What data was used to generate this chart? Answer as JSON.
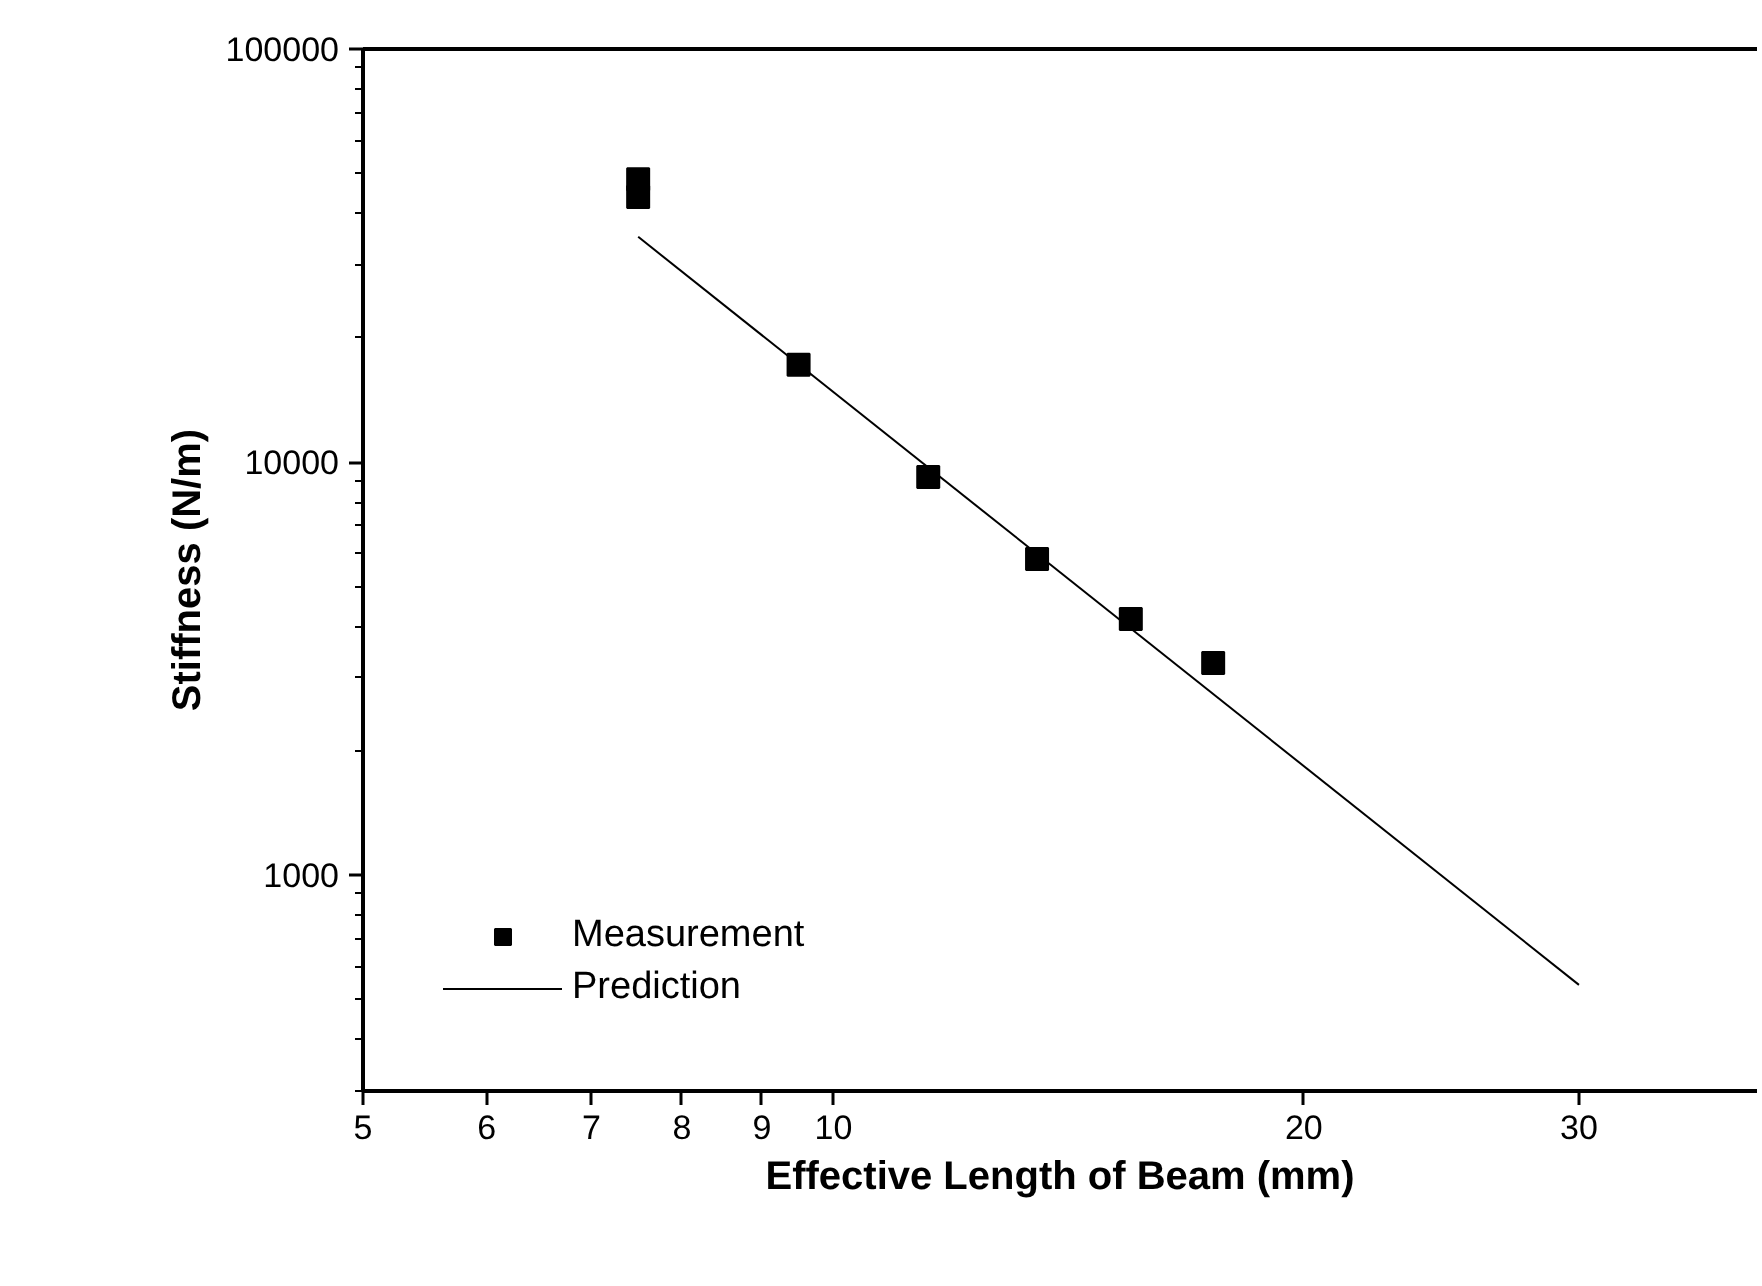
{
  "chart_data": {
    "type": "scatter",
    "xlabel": "Effective Length of Beam (mm)",
    "ylabel": "Stiffness (N/m)",
    "log": "xy",
    "xlim": [
      5,
      39
    ],
    "ylim": [
      300,
      100000
    ],
    "xticks": [
      5,
      6,
      7,
      8,
      9,
      10,
      20,
      30
    ],
    "yticks": [
      1000,
      10000,
      100000
    ],
    "series": [
      {
        "name": "Measurement",
        "color": "#000000",
        "marker": "square",
        "x": [
          7.5,
          7.5,
          9.5,
          11.5,
          13.5,
          15.5,
          17.5
        ],
        "values": [
          48400,
          43800,
          17200,
          9200,
          5820,
          4170,
          3260
        ]
      },
      {
        "name": "Prediction",
        "type": "line",
        "color": "#000000",
        "marker": "none",
        "x": [
          7.5,
          30
        ],
        "values": [
          35100,
          542
        ]
      }
    ],
    "grid": false,
    "legend": "bottom left"
  }
}
